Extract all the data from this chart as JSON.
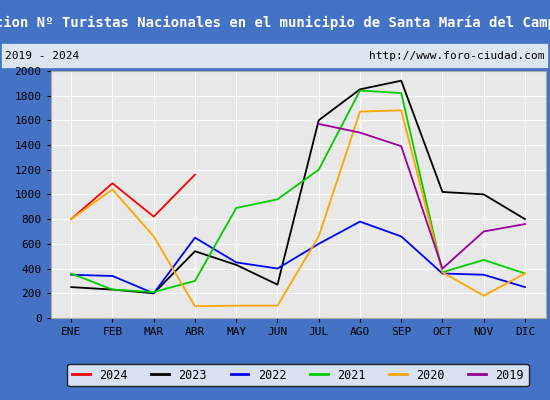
{
  "title": "Evolucion Nº Turistas Nacionales en el municipio de Santa María del Campo Rus",
  "subtitle_left": "2019 - 2024",
  "subtitle_right": "http://www.foro-ciudad.com",
  "months": [
    "ENE",
    "FEB",
    "MAR",
    "ABR",
    "MAY",
    "JUN",
    "JUL",
    "AGO",
    "SEP",
    "OCT",
    "NOV",
    "DIC"
  ],
  "ylim": [
    0,
    2000
  ],
  "yticks": [
    0,
    200,
    400,
    600,
    800,
    1000,
    1200,
    1400,
    1600,
    1800,
    2000
  ],
  "series": {
    "2024": {
      "color": "#ff0000",
      "data": [
        800,
        1090,
        820,
        1160,
        null,
        null,
        null,
        null,
        null,
        null,
        null,
        null
      ]
    },
    "2023": {
      "color": "#000000",
      "data": [
        250,
        230,
        200,
        540,
        430,
        270,
        1600,
        1850,
        1920,
        1020,
        1000,
        800
      ]
    },
    "2022": {
      "color": "#0000ff",
      "data": [
        350,
        340,
        200,
        650,
        450,
        400,
        600,
        780,
        660,
        360,
        350,
        250
      ]
    },
    "2021": {
      "color": "#00cc00",
      "data": [
        360,
        230,
        210,
        300,
        890,
        960,
        1200,
        1840,
        1820,
        370,
        470,
        360
      ]
    },
    "2020": {
      "color": "#ffa500",
      "data": [
        800,
        1040,
        660,
        95,
        100,
        100,
        660,
        1670,
        1680,
        370,
        180,
        360
      ]
    },
    "2019": {
      "color": "#990099",
      "data": [
        null,
        null,
        null,
        null,
        null,
        null,
        1570,
        1500,
        1390,
        400,
        700,
        760
      ]
    }
  },
  "title_bg": "#4472c4",
  "title_color": "#ffffff",
  "subtitle_bg": "#dce6f1",
  "plot_bg": "#e8e8e8",
  "grid_color": "#ffffff",
  "border_color": "#4472c4",
  "title_fontsize": 10,
  "subtitle_fontsize": 8,
  "axis_label_fontsize": 8,
  "legend_fontsize": 8.5
}
